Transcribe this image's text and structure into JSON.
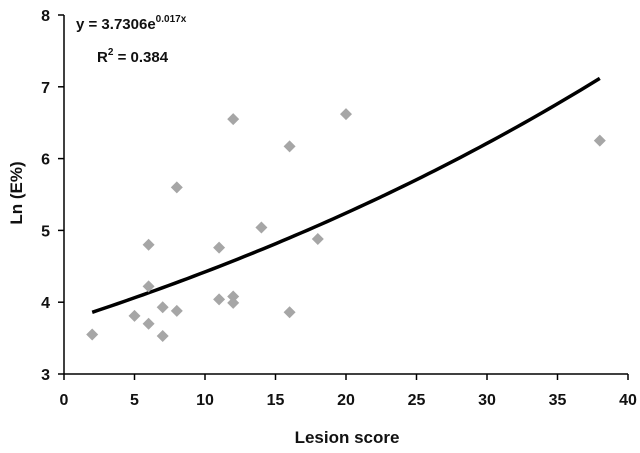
{
  "chart_data": {
    "type": "scatter",
    "xlabel": "Lesion score",
    "ylabel": "Ln (E%)",
    "xlim": [
      0,
      40
    ],
    "ylim": [
      3,
      8
    ],
    "x_ticks": [
      0,
      5,
      10,
      15,
      20,
      25,
      30,
      35,
      40
    ],
    "y_ticks": [
      3,
      4,
      5,
      6,
      7,
      8
    ],
    "grid": false,
    "points": [
      {
        "x": 2,
        "y": 3.55
      },
      {
        "x": 5,
        "y": 3.81
      },
      {
        "x": 6,
        "y": 4.8
      },
      {
        "x": 6,
        "y": 4.22
      },
      {
        "x": 6,
        "y": 3.7
      },
      {
        "x": 7,
        "y": 3.93
      },
      {
        "x": 7,
        "y": 3.53
      },
      {
        "x": 8,
        "y": 5.6
      },
      {
        "x": 8,
        "y": 3.88
      },
      {
        "x": 11,
        "y": 4.76
      },
      {
        "x": 11,
        "y": 4.04
      },
      {
        "x": 12,
        "y": 6.55
      },
      {
        "x": 12,
        "y": 4.08
      },
      {
        "x": 12,
        "y": 3.99
      },
      {
        "x": 14,
        "y": 5.04
      },
      {
        "x": 16,
        "y": 6.17
      },
      {
        "x": 16,
        "y": 3.86
      },
      {
        "x": 18,
        "y": 4.88
      },
      {
        "x": 20,
        "y": 6.62
      },
      {
        "x": 38,
        "y": 6.25
      }
    ],
    "trendline": {
      "type": "exponential",
      "a": 3.7306,
      "b": 0.017,
      "x_range": [
        2,
        38
      ],
      "equation_prefix": "y = 3.7306e",
      "equation_exponent": "0.017x",
      "r2_prefix": "R",
      "r2_power": "2",
      "r2_suffix": " = 0.384"
    },
    "marker_color": "#a6a6a6",
    "line_color": "#000000"
  }
}
